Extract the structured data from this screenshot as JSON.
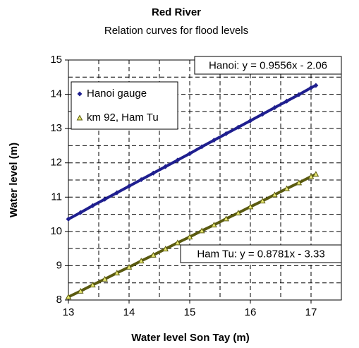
{
  "chart_data": {
    "type": "scatter",
    "title": "Red River",
    "subtitle": "Relation curves for flood levels",
    "xlabel": "Water level Son Tay (m)",
    "ylabel": "Water level (m)",
    "xlim": [
      13,
      17.5
    ],
    "ylim": [
      8,
      15
    ],
    "xticks": [
      13,
      14,
      15,
      16,
      17
    ],
    "yticks": [
      8,
      9,
      10,
      11,
      12,
      13,
      14,
      15
    ],
    "xminorgrid": [
      13.5,
      14.5,
      15.5,
      16.5,
      17.5
    ],
    "yminorgrid": [
      8.5,
      9.5,
      10.5,
      11.5,
      12.5,
      13.5,
      14.5
    ],
    "grid": true,
    "legend": "upper left",
    "annotations": [
      "Hanoi: y = 0.9556x - 2.06",
      "Ham Tu: y = 0.8781x - 3.33"
    ],
    "x": [
      13.0,
      13.2,
      13.4,
      13.6,
      13.8,
      14.0,
      14.2,
      14.4,
      14.6,
      14.8,
      15.0,
      15.2,
      15.4,
      15.6,
      15.8,
      16.0,
      16.2,
      16.4,
      16.6,
      16.8,
      17.0,
      17.08
    ],
    "series": [
      {
        "name": "Hanoi gauge",
        "color": "#1f1f8f",
        "marker": "diamond",
        "values": [
          10.36,
          10.55,
          10.75,
          10.94,
          11.13,
          11.32,
          11.51,
          11.7,
          11.89,
          12.08,
          12.27,
          12.47,
          12.66,
          12.85,
          13.04,
          13.23,
          13.42,
          13.61,
          13.8,
          13.99,
          14.19,
          14.26
        ]
      },
      {
        "name": "km 92, Ham Tu",
        "color": "#5a5a10",
        "marker": "triangle",
        "values": [
          8.09,
          8.26,
          8.44,
          8.61,
          8.79,
          8.96,
          9.14,
          9.31,
          9.49,
          9.67,
          9.84,
          10.02,
          10.19,
          10.37,
          10.54,
          10.72,
          10.89,
          11.07,
          11.25,
          11.42,
          11.6,
          11.67
        ]
      }
    ]
  }
}
